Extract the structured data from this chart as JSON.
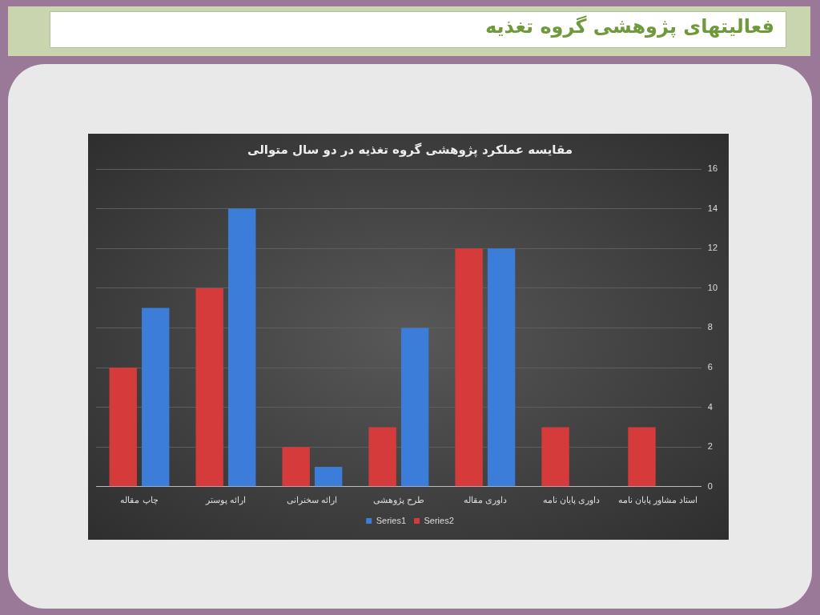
{
  "chart_data": {
    "type": "bar",
    "title": "فعالیتهای پژوهشی گروه تغذیه",
    "subtitle": "مقایسه عملکرد پژوهشی گروه تغذیه در دو سال متوالی",
    "categories": [
      "چاپ مقاله",
      "ارائه پوستر",
      "ارائه سخنرانی",
      "طرح پژوهشی",
      "داوری مقاله",
      "داوری پایان نامه",
      "استاد مشاور پایان نامه"
    ],
    "series": [
      {
        "name": "Series2",
        "color": "#d63b3b",
        "values": [
          6,
          10,
          2,
          3,
          12,
          3,
          3
        ]
      },
      {
        "name": "Series1",
        "color": "#3b7dd8",
        "values": [
          9,
          14,
          1,
          8,
          12,
          null,
          null
        ]
      }
    ],
    "ylim": [
      0,
      16
    ],
    "yticks": [
      0,
      2,
      4,
      6,
      8,
      10,
      12,
      14,
      16
    ],
    "grid": "y",
    "legend": "bottom"
  }
}
